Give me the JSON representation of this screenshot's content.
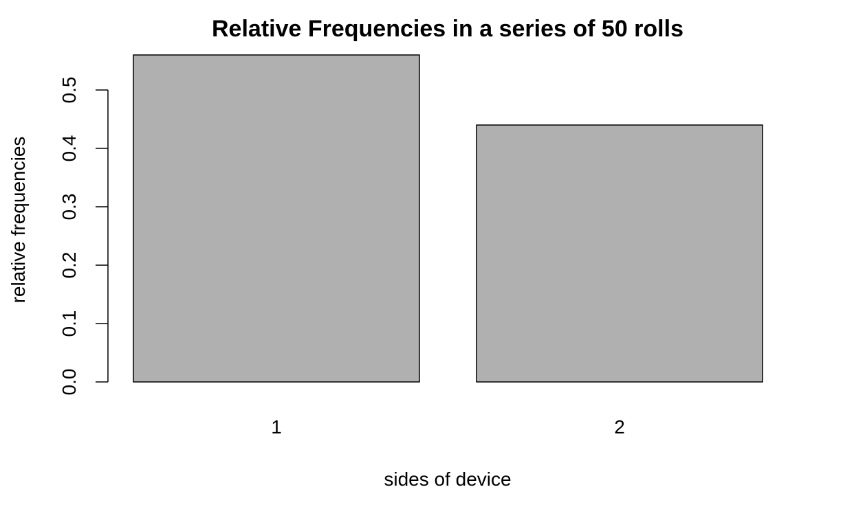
{
  "chart_data": {
    "type": "bar",
    "title": "Relative Frequencies in a series of 50 rolls",
    "xlabel": "sides of device",
    "ylabel": "relative frequencies",
    "categories": [
      "1",
      "2"
    ],
    "values": [
      0.56,
      0.44
    ],
    "ylim": [
      0,
      0.56
    ],
    "yticks": [
      "0.0",
      "0.1",
      "0.2",
      "0.3",
      "0.4",
      "0.5"
    ],
    "bar_color": "#b0b0b0",
    "grid": false
  }
}
